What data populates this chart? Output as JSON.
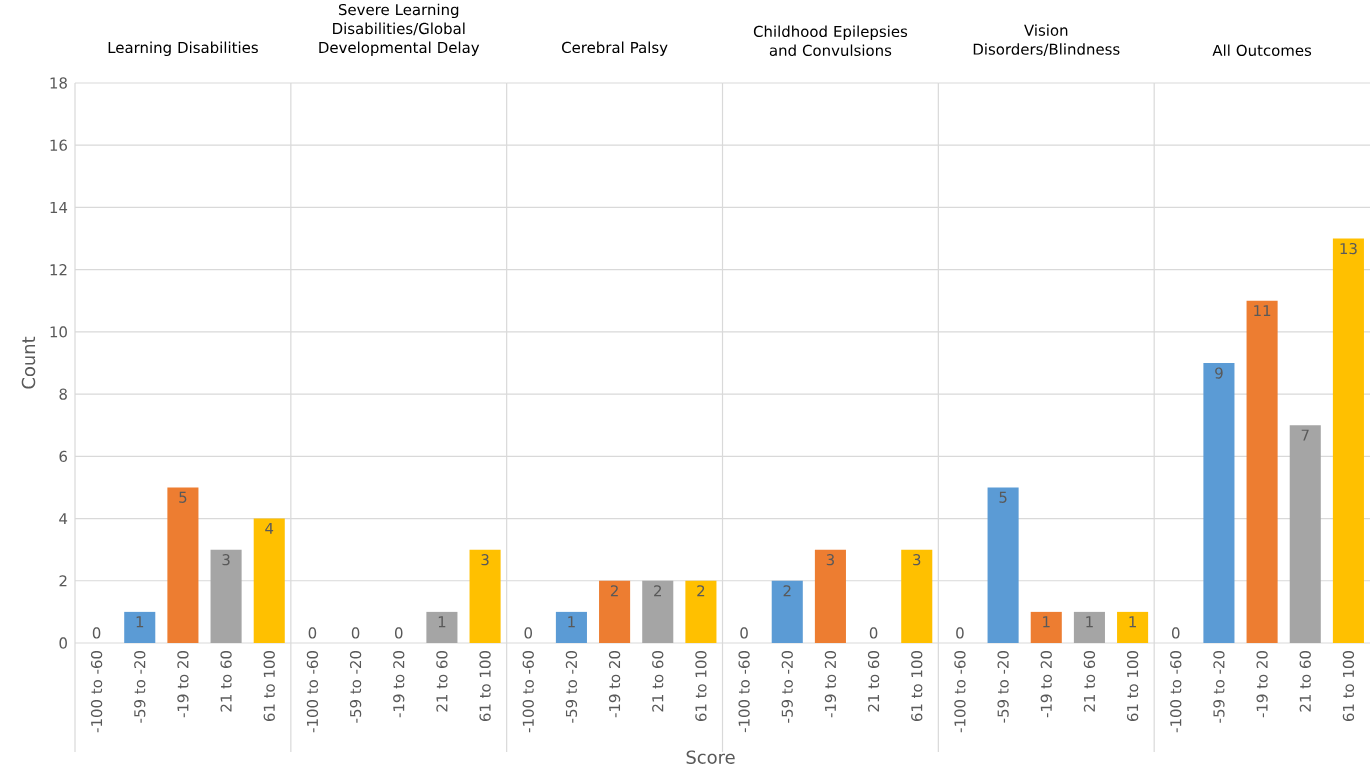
{
  "chart_data": [
    {
      "type": "bar",
      "title": "Learning Disabilities",
      "ylabel": "Count",
      "categories": [
        "-100 to -60",
        "-59 to -20",
        "-19 to 20",
        "21 to 60",
        "61 to 100"
      ],
      "values": [
        0,
        1,
        5,
        3,
        4
      ],
      "colors": [
        "#4472c4",
        "#5b9bd5",
        "#ed7d31",
        "#a5a5a5",
        "#ffc000"
      ],
      "data_labels": true,
      "ylim": [
        0,
        18
      ],
      "yticks": [
        0,
        2,
        4,
        6,
        8,
        10,
        12,
        14,
        16,
        18
      ],
      "grid": "y"
    },
    {
      "type": "bar",
      "title": "Severe Learning Disabilities/Global Developmental Delay",
      "categories": [
        "-100 to -60",
        "-59 to -20",
        "-19 to 20",
        "21 to 60",
        "61 to 100"
      ],
      "values": [
        0,
        0,
        0,
        1,
        3
      ],
      "colors": [
        "#4472c4",
        "#5b9bd5",
        "#ed7d31",
        "#a5a5a5",
        "#ffc000"
      ],
      "data_labels": true,
      "ylim": [
        0,
        18
      ],
      "yticks": [
        0,
        2,
        4,
        6,
        8,
        10,
        12,
        14,
        16,
        18
      ],
      "grid": "y",
      "tick_labels": "x"
    },
    {
      "type": "bar",
      "title": "Cerebral Palsy",
      "categories": [
        "-100 to -60",
        "-59 to -20",
        "-19 to 20",
        "21 to 60",
        "61 to 100"
      ],
      "values": [
        0,
        1,
        2,
        2,
        2
      ],
      "colors": [
        "#4472c4",
        "#5b9bd5",
        "#ed7d31",
        "#a5a5a5",
        "#ffc000"
      ],
      "data_labels": true,
      "ylim": [
        0,
        18
      ],
      "yticks": [
        0,
        2,
        4,
        6,
        8,
        10,
        12,
        14,
        16,
        18
      ],
      "grid": "y",
      "tick_labels": "x"
    },
    {
      "type": "bar",
      "title": "Childhood Epilepsies and Convulsions",
      "xlabel": "Score",
      "categories": [
        "-100 to -60",
        "-59 to -20",
        "-19 to 20",
        "21 to 60",
        "61 to 100"
      ],
      "values": [
        0,
        2,
        3,
        0,
        3
      ],
      "colors": [
        "#4472c4",
        "#5b9bd5",
        "#ed7d31",
        "#a5a5a5",
        "#ffc000"
      ],
      "data_labels": true,
      "ylim": [
        0,
        18
      ],
      "yticks": [
        0,
        2,
        4,
        6,
        8,
        10,
        12,
        14,
        16,
        18
      ],
      "grid": "y",
      "tick_labels": "x"
    },
    {
      "type": "bar",
      "title": "Vision Disorders/Blindness",
      "categories": [
        "-100 to -60",
        "-59 to -20",
        "-19 to 20",
        "21 to 60",
        "61 to 100"
      ],
      "values": [
        0,
        5,
        1,
        1,
        1
      ],
      "colors": [
        "#4472c4",
        "#5b9bd5",
        "#ed7d31",
        "#a5a5a5",
        "#ffc000"
      ],
      "data_labels": true,
      "ylim": [
        0,
        18
      ],
      "yticks": [
        0,
        2,
        4,
        6,
        8,
        10,
        12,
        14,
        16,
        18
      ],
      "grid": "y",
      "tick_labels": "x"
    },
    {
      "type": "bar",
      "title": "All Outcomes",
      "categories": [
        "-100 to -60",
        "-59 to -20",
        "-19 to 20",
        "21 to 60",
        "61 to 100"
      ],
      "values": [
        0,
        9,
        11,
        7,
        13
      ],
      "colors": [
        "#4472c4",
        "#5b9bd5",
        "#ed7d31",
        "#a5a5a5",
        "#ffc000"
      ],
      "data_labels": true,
      "ylim": [
        0,
        18
      ],
      "yticks": [
        0,
        2,
        4,
        6,
        8,
        10,
        12,
        14,
        16,
        18
      ],
      "grid": "y",
      "tick_labels": "x"
    }
  ]
}
